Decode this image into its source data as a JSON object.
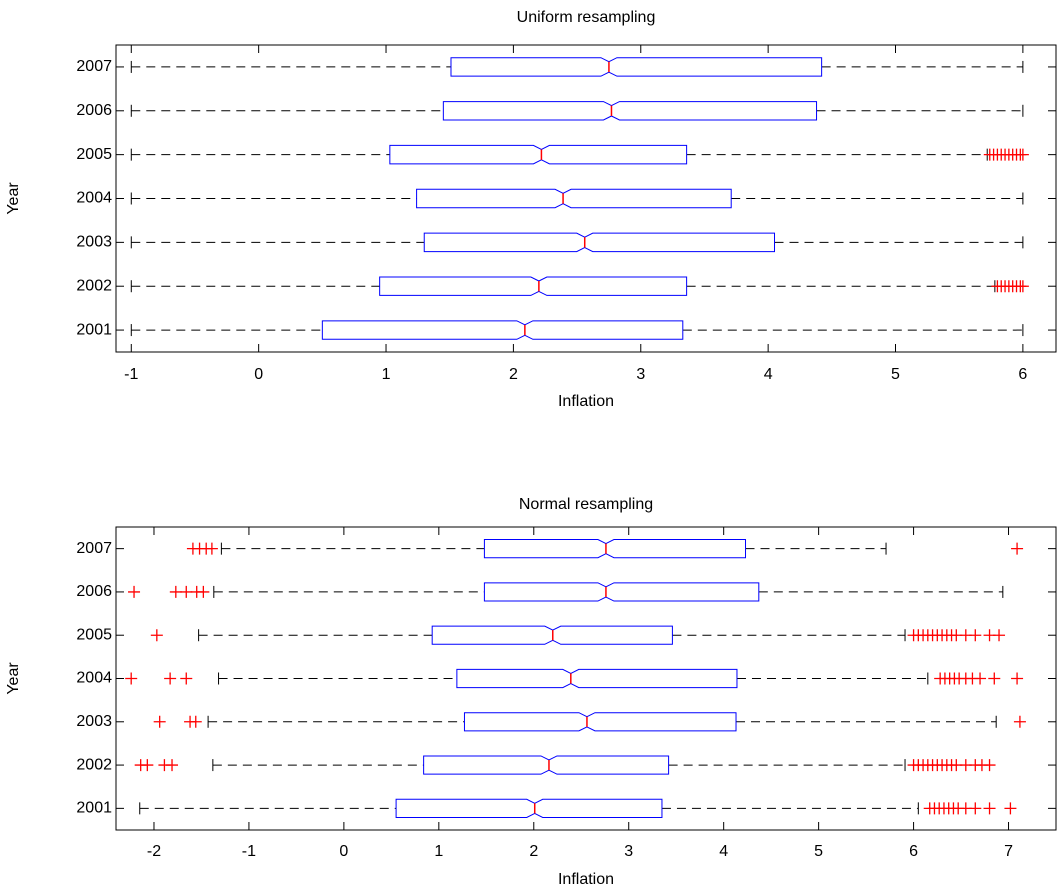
{
  "chart_data": [
    {
      "type": "box",
      "title": "Uniform resampling",
      "xlabel": "Inflation",
      "ylabel": "Year",
      "categories": [
        "2001",
        "2002",
        "2003",
        "2004",
        "2005",
        "2006",
        "2007"
      ],
      "box_color": "#0000ff",
      "median_color": "#ff0000",
      "whisker_color": "#000000",
      "flier_color": "#ff0000",
      "boxes": [
        {
          "whislo": -1,
          "q1": 0.5,
          "med": 2.09,
          "q3": 3.33,
          "whishi": 6,
          "fliers": []
        },
        {
          "whislo": -1,
          "q1": 0.95,
          "med": 2.2,
          "q3": 3.36,
          "whishi": 5.78,
          "fliers": [
            5.8,
            5.83,
            5.86,
            5.89,
            5.92,
            5.95,
            5.98,
            6.0
          ]
        },
        {
          "whislo": -1,
          "q1": 1.3,
          "med": 2.56,
          "q3": 4.05,
          "whishi": 6,
          "fliers": []
        },
        {
          "whislo": -1,
          "q1": 1.24,
          "med": 2.39,
          "q3": 3.71,
          "whishi": 6,
          "fliers": []
        },
        {
          "whislo": -1,
          "q1": 1.03,
          "med": 2.22,
          "q3": 3.36,
          "whishi": 5.72,
          "fliers": [
            5.74,
            5.77,
            5.8,
            5.83,
            5.86,
            5.89,
            5.92,
            5.95,
            5.98,
            6.0
          ]
        },
        {
          "whislo": -1,
          "q1": 1.45,
          "med": 2.77,
          "q3": 4.38,
          "whishi": 6,
          "fliers": []
        },
        {
          "whislo": -1,
          "q1": 1.51,
          "med": 2.75,
          "q3": 4.42,
          "whishi": 6,
          "fliers": []
        }
      ],
      "xlim": [
        -1.12,
        6.26
      ],
      "xticks": [
        -1,
        0,
        1,
        2,
        3,
        4,
        5,
        6
      ]
    },
    {
      "type": "box",
      "title": "Normal resampling",
      "xlabel": "Inflation",
      "ylabel": "Year",
      "categories": [
        "2001",
        "2002",
        "2003",
        "2004",
        "2005",
        "2006",
        "2007"
      ],
      "box_color": "#0000ff",
      "median_color": "#ff0000",
      "whisker_color": "#000000",
      "flier_color": "#ff0000",
      "boxes": [
        {
          "whislo": -2.15,
          "q1": 0.55,
          "med": 2.01,
          "q3": 3.35,
          "whishi": 6.05,
          "fliers": [
            6.17,
            6.22,
            6.27,
            6.32,
            6.37,
            6.42,
            6.47,
            6.55,
            6.65,
            6.8,
            7.02
          ]
        },
        {
          "whislo": -1.38,
          "q1": 0.84,
          "med": 2.16,
          "q3": 3.42,
          "whishi": 5.91,
          "fliers": [
            -2.14,
            -2.07,
            -1.89,
            -1.81,
            6.0,
            6.05,
            6.1,
            6.15,
            6.2,
            6.25,
            6.3,
            6.35,
            6.4,
            6.45,
            6.55,
            6.65,
            6.72,
            6.8
          ]
        },
        {
          "whislo": -1.43,
          "q1": 1.27,
          "med": 2.56,
          "q3": 4.13,
          "whishi": 6.87,
          "fliers": [
            -1.94,
            -1.62,
            -1.56,
            7.12
          ]
        },
        {
          "whislo": -1.32,
          "q1": 1.19,
          "med": 2.39,
          "q3": 4.14,
          "whishi": 6.15,
          "fliers": [
            -2.24,
            -1.83,
            -1.66,
            6.28,
            6.33,
            6.38,
            6.43,
            6.48,
            6.55,
            6.62,
            6.7,
            6.85,
            7.09
          ]
        },
        {
          "whislo": -1.53,
          "q1": 0.93,
          "med": 2.2,
          "q3": 3.46,
          "whishi": 5.91,
          "fliers": [
            -1.97,
            6.0,
            6.05,
            6.1,
            6.15,
            6.2,
            6.25,
            6.3,
            6.35,
            6.4,
            6.45,
            6.55,
            6.65,
            6.8,
            6.9
          ]
        },
        {
          "whislo": -1.37,
          "q1": 1.48,
          "med": 2.76,
          "q3": 4.37,
          "whishi": 6.94,
          "fliers": [
            -2.21,
            -1.77,
            -1.66,
            -1.55,
            -1.48
          ]
        },
        {
          "whislo": -1.29,
          "q1": 1.48,
          "med": 2.76,
          "q3": 4.23,
          "whishi": 5.71,
          "fliers": [
            -1.59,
            -1.52,
            -1.45,
            -1.39,
            7.09
          ]
        }
      ],
      "xlim": [
        -2.4,
        7.5
      ],
      "xticks": [
        -2,
        -1,
        0,
        1,
        2,
        3,
        4,
        5,
        6,
        7
      ]
    }
  ]
}
